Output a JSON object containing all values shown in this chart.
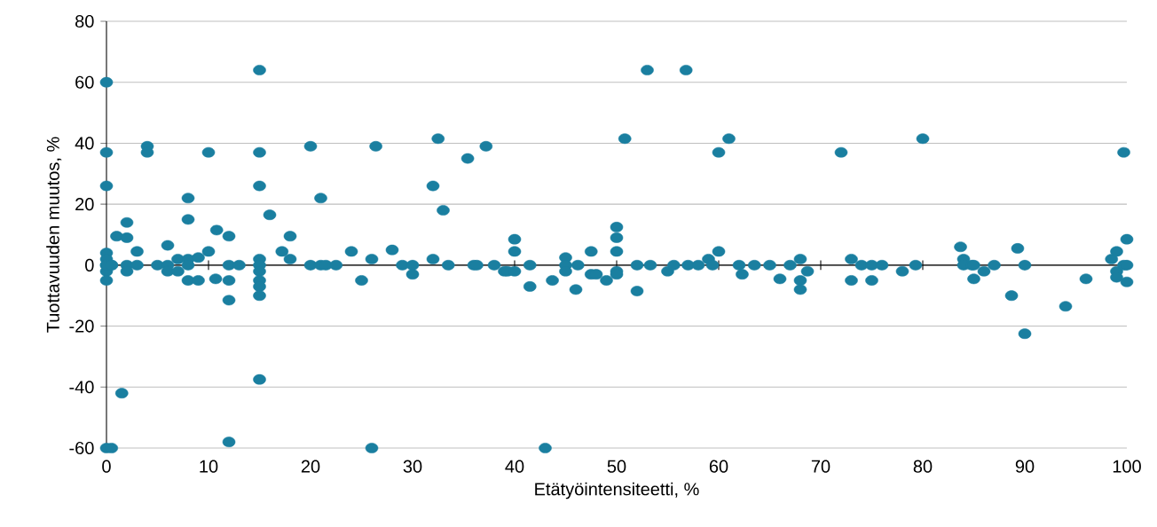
{
  "chart_data": {
    "type": "scatter",
    "xlabel": "Etätyöintensiteetti, %",
    "ylabel": "Tuottavuuden muutos, %",
    "color": "#1a7fa0",
    "grid": "y",
    "xlim": [
      0,
      100
    ],
    "ylim": [
      -60,
      80
    ],
    "xticks": [
      0,
      10,
      20,
      30,
      40,
      50,
      60,
      70,
      80,
      90,
      100
    ],
    "yticks": [
      -60,
      -40,
      -20,
      0,
      20,
      40,
      60,
      80
    ],
    "x": [
      0,
      0,
      0,
      0,
      0,
      0,
      0,
      0,
      0,
      0.5,
      0.5,
      0,
      0.5,
      1,
      1.5,
      2,
      2,
      2,
      2,
      3,
      3,
      4,
      4,
      5,
      6,
      6,
      6,
      7,
      7,
      8,
      8,
      8,
      8,
      8,
      9,
      9,
      10,
      10,
      10.7,
      10.8,
      12,
      12,
      12,
      12,
      12,
      13,
      15,
      15,
      15,
      15,
      15,
      15,
      15,
      15,
      15,
      15,
      16,
      17.2,
      18,
      18,
      20,
      20,
      21,
      21.5,
      21,
      22.5,
      24,
      25,
      26,
      26,
      26.4,
      28,
      29,
      30,
      30,
      32,
      32,
      32.5,
      33,
      33.5,
      35.4,
      36,
      36.3,
      37.2,
      38,
      39,
      39.3,
      40,
      40,
      40,
      41.5,
      41.5,
      43,
      43.7,
      45,
      45,
      45,
      46,
      46.2,
      47.5,
      47.5,
      48,
      49,
      50,
      50,
      50,
      50,
      50,
      50.8,
      52,
      52,
      53,
      53.3,
      55,
      55.6,
      56.8,
      57,
      58,
      59,
      59.4,
      60,
      60,
      61,
      62,
      62.3,
      63.5,
      65,
      66,
      67,
      68,
      68,
      68,
      68.7,
      72,
      73,
      73,
      74,
      75,
      75,
      76,
      78,
      79.3,
      80,
      83.7,
      84,
      84,
      84.8,
      85,
      85,
      86,
      87,
      88.7,
      89.3,
      90,
      90,
      94,
      96,
      98.5,
      99,
      99,
      99,
      99.7,
      99.7,
      100,
      100,
      100
    ],
    "values": [
      60,
      37,
      26,
      4,
      2,
      0,
      -2,
      -5,
      -60,
      -60,
      0,
      0,
      0,
      9.5,
      -42,
      14,
      9,
      0,
      -2,
      4.5,
      0,
      39,
      37,
      0,
      6.5,
      0,
      -2,
      2,
      -2,
      22,
      15,
      2,
      0,
      -5,
      -5,
      2.5,
      37,
      4.5,
      -4.5,
      11.5,
      9.5,
      0,
      -5,
      -11.5,
      -58,
      0,
      64,
      37,
      26,
      2,
      0,
      -2,
      -5,
      -7,
      -10,
      -37.5,
      16.5,
      4.5,
      9.5,
      2,
      39,
      0,
      0,
      0,
      22,
      0,
      4.5,
      -5,
      2,
      -60,
      39,
      5,
      0,
      0,
      -3,
      26,
      2,
      41.5,
      18,
      0,
      35,
      0,
      0,
      39,
      0,
      -2,
      -2,
      8.5,
      4.5,
      -2,
      0,
      -7,
      -60,
      -5,
      2.5,
      0,
      -2,
      -8,
      0,
      4.5,
      -3,
      -3,
      -5,
      12.5,
      9,
      4.5,
      -2,
      -3,
      41.5,
      0,
      -8.5,
      64,
      0,
      -2,
      0,
      64,
      0,
      0,
      2,
      0,
      37,
      4.5,
      41.5,
      0,
      -3,
      0,
      0,
      -4.5,
      0,
      2,
      -5,
      -8,
      -2,
      37,
      2,
      -5,
      0,
      0,
      -5,
      0,
      -2,
      0,
      41.5,
      6,
      2,
      0,
      0,
      0,
      -4.5,
      -2,
      0,
      -10,
      5.5,
      0,
      -22.5,
      -13.5,
      -4.5,
      2,
      4.5,
      -2,
      -4,
      37,
      0,
      0,
      8.5,
      -5.5
    ]
  }
}
